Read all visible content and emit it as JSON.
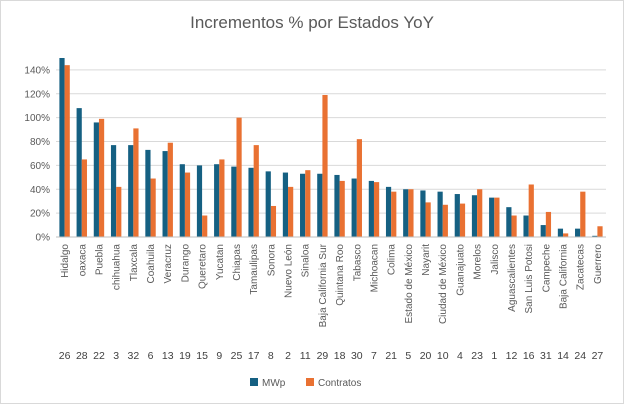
{
  "chart_data": {
    "type": "bar",
    "title": "Incrementos % por Estados YoY",
    "xlabel": "",
    "ylabel": "",
    "ylim": [
      0,
      1.5
    ],
    "yticks": [
      "0%",
      "20%",
      "40%",
      "60%",
      "80%",
      "100%",
      "120%",
      "140%"
    ],
    "categories": [
      "Hidalgo",
      "oaxaca",
      "Puebla",
      "chihuahua",
      "Tlaxcala",
      "Coahuila",
      "Veracruz",
      "Durango",
      "Queretaro",
      "Yucatan",
      "Chiapas",
      "Tamaulipas",
      "Sonora",
      "Nuevo León",
      "Sinaloa",
      "Baja California Sur",
      "Quintana Roo",
      "Tabasco",
      "Michoacan",
      "Colima",
      "Estado de México",
      "Nayarit",
      "Ciudad de México",
      "Guanajuato",
      "Morelos",
      "Jalisco",
      "Aguascalientes",
      "San Luis Potosi",
      "Campeche",
      "Baja California",
      "Zacatecas",
      "Guerrero"
    ],
    "codes": [
      "26",
      "28",
      "22",
      "3",
      "32",
      "6",
      "13",
      "19",
      "15",
      "9",
      "25",
      "17",
      "8",
      "2",
      "11",
      "29",
      "18",
      "30",
      "7",
      "21",
      "5",
      "20",
      "10",
      "4",
      "23",
      "1",
      "12",
      "16",
      "31",
      "14",
      "24",
      "27"
    ],
    "series": [
      {
        "name": "MWp",
        "color": "#156082",
        "values": [
          1.5,
          1.08,
          0.96,
          0.77,
          0.77,
          0.73,
          0.72,
          0.61,
          0.6,
          0.61,
          0.59,
          0.58,
          0.55,
          0.54,
          0.53,
          0.53,
          0.52,
          0.49,
          0.47,
          0.42,
          0.4,
          0.39,
          0.38,
          0.36,
          0.35,
          0.33,
          0.25,
          0.18,
          0.1,
          0.07,
          0.07,
          0.01
        ]
      },
      {
        "name": "Contratos",
        "color": "#E97132",
        "values": [
          1.44,
          0.65,
          0.99,
          0.42,
          0.91,
          0.49,
          0.79,
          0.54,
          0.18,
          0.65,
          1.0,
          0.77,
          0.26,
          0.42,
          0.56,
          1.19,
          0.47,
          0.82,
          0.46,
          0.38,
          0.4,
          0.29,
          0.27,
          0.28,
          0.4,
          0.33,
          0.18,
          0.44,
          0.21,
          0.03,
          0.38,
          0.09
        ]
      }
    ],
    "grid": true,
    "legend": "bottom"
  }
}
